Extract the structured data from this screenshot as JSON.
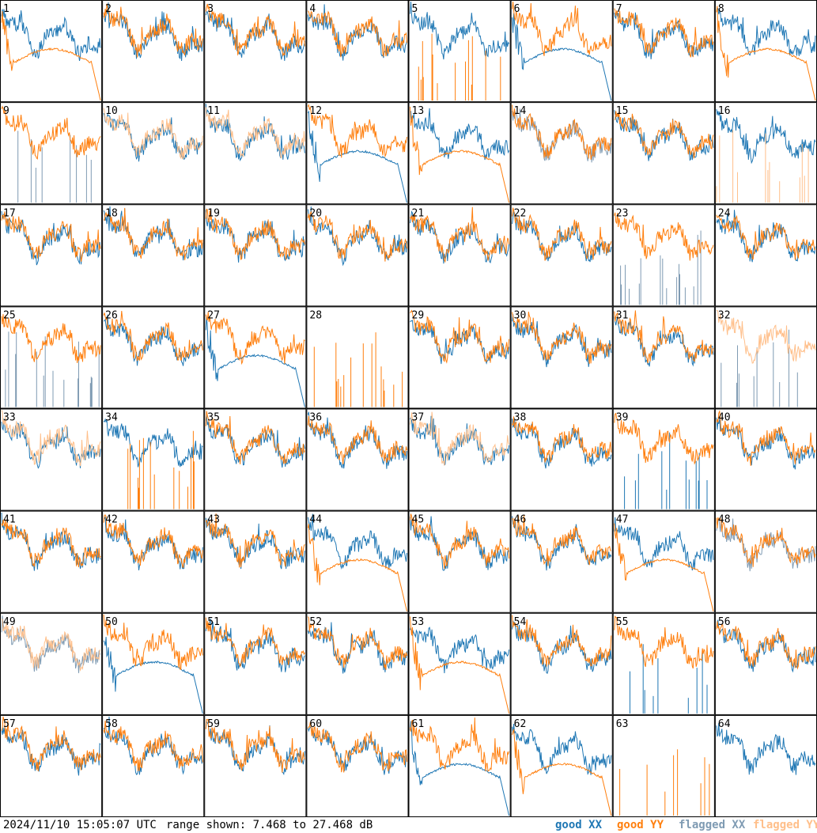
{
  "footer": {
    "timestamp": "2024/11/10 15:05:07 UTC",
    "range_text": "range shown: 7.468 to 27.468 dB"
  },
  "legend": [
    {
      "label": "good XX",
      "color": "#1f77b4"
    },
    {
      "label": "good YY",
      "color": "#ff7f0e"
    },
    {
      "label": "flagged XX",
      "color": "#7f9bb3"
    },
    {
      "label": "flagged YY",
      "color": "#ffbf8a"
    }
  ],
  "chart_data": {
    "type": "line",
    "layout": "8x8 small-multiples",
    "title": "",
    "xlabel": "",
    "ylabel": "",
    "ylim": [
      7.468,
      27.468
    ],
    "units": "dB",
    "grid": false,
    "legend_position": "bottom-right",
    "panels": [
      {
        "id": 1,
        "xx": "good",
        "yy": "good",
        "xx_shape": "normal",
        "yy_shape": "dip"
      },
      {
        "id": 2,
        "xx": "good",
        "yy": "good",
        "xx_shape": "normal",
        "yy_shape": "normal"
      },
      {
        "id": 3,
        "xx": "good",
        "yy": "good",
        "xx_shape": "normal",
        "yy_shape": "normal"
      },
      {
        "id": 4,
        "xx": "good",
        "yy": "good",
        "xx_shape": "normal",
        "yy_shape": "normal"
      },
      {
        "id": 5,
        "xx": "good",
        "yy": "good",
        "xx_shape": "normal",
        "yy_shape": "spikes"
      },
      {
        "id": 6,
        "xx": "good",
        "yy": "good",
        "xx_shape": "dip",
        "yy_shape": "normal"
      },
      {
        "id": 7,
        "xx": "good",
        "yy": "good",
        "xx_shape": "normal",
        "yy_shape": "normal"
      },
      {
        "id": 8,
        "xx": "good",
        "yy": "good",
        "xx_shape": "normal",
        "yy_shape": "dip"
      },
      {
        "id": 9,
        "xx": "flagged",
        "yy": "good",
        "xx_shape": "spikes",
        "yy_shape": "normal"
      },
      {
        "id": 10,
        "xx": "good",
        "yy": "flagged",
        "xx_shape": "normal",
        "yy_shape": "normal"
      },
      {
        "id": 11,
        "xx": "good",
        "yy": "flagged",
        "xx_shape": "normal",
        "yy_shape": "normal"
      },
      {
        "id": 12,
        "xx": "good",
        "yy": "good",
        "xx_shape": "dip",
        "yy_shape": "normal"
      },
      {
        "id": 13,
        "xx": "good",
        "yy": "good",
        "xx_shape": "normal",
        "yy_shape": "dip"
      },
      {
        "id": 14,
        "xx": "flagged",
        "yy": "good",
        "xx_shape": "normal",
        "yy_shape": "normal"
      },
      {
        "id": 15,
        "xx": "good",
        "yy": "good",
        "xx_shape": "normal",
        "yy_shape": "normal"
      },
      {
        "id": 16,
        "xx": "good",
        "yy": "flagged",
        "xx_shape": "normal",
        "yy_shape": "spikes"
      },
      {
        "id": 17,
        "xx": "good",
        "yy": "good",
        "xx_shape": "normal",
        "yy_shape": "normal"
      },
      {
        "id": 18,
        "xx": "good",
        "yy": "good",
        "xx_shape": "normal",
        "yy_shape": "normal"
      },
      {
        "id": 19,
        "xx": "good",
        "yy": "good",
        "xx_shape": "normal",
        "yy_shape": "normal"
      },
      {
        "id": 20,
        "xx": "good",
        "yy": "good",
        "xx_shape": "normal",
        "yy_shape": "normal"
      },
      {
        "id": 21,
        "xx": "good",
        "yy": "good",
        "xx_shape": "normal",
        "yy_shape": "normal"
      },
      {
        "id": 22,
        "xx": "good",
        "yy": "good",
        "xx_shape": "normal",
        "yy_shape": "normal"
      },
      {
        "id": 23,
        "xx": "flagged",
        "yy": "good",
        "xx_shape": "spikes",
        "yy_shape": "normal"
      },
      {
        "id": 24,
        "xx": "good",
        "yy": "good",
        "xx_shape": "normal",
        "yy_shape": "normal"
      },
      {
        "id": 25,
        "xx": "flagged",
        "yy": "good",
        "xx_shape": "spikes",
        "yy_shape": "normal"
      },
      {
        "id": 26,
        "xx": "good",
        "yy": "good",
        "xx_shape": "normal",
        "yy_shape": "normal"
      },
      {
        "id": 27,
        "xx": "good",
        "yy": "good",
        "xx_shape": "dip",
        "yy_shape": "normal"
      },
      {
        "id": 28,
        "xx": "good",
        "yy": "good",
        "xx_shape": "none",
        "yy_shape": "spikes"
      },
      {
        "id": 29,
        "xx": "good",
        "yy": "good",
        "xx_shape": "normal",
        "yy_shape": "normal"
      },
      {
        "id": 30,
        "xx": "good",
        "yy": "good",
        "xx_shape": "normal",
        "yy_shape": "normal"
      },
      {
        "id": 31,
        "xx": "good",
        "yy": "good",
        "xx_shape": "normal",
        "yy_shape": "normal"
      },
      {
        "id": 32,
        "xx": "flagged",
        "yy": "flagged",
        "xx_shape": "spikes",
        "yy_shape": "normal"
      },
      {
        "id": 33,
        "xx": "good",
        "yy": "flagged",
        "xx_shape": "normal",
        "yy_shape": "normal"
      },
      {
        "id": 34,
        "xx": "good",
        "yy": "good",
        "xx_shape": "normal",
        "yy_shape": "spikes"
      },
      {
        "id": 35,
        "xx": "good",
        "yy": "good",
        "xx_shape": "normal",
        "yy_shape": "normal"
      },
      {
        "id": 36,
        "xx": "good",
        "yy": "good",
        "xx_shape": "normal",
        "yy_shape": "normal"
      },
      {
        "id": 37,
        "xx": "good",
        "yy": "flagged",
        "xx_shape": "normal",
        "yy_shape": "normal"
      },
      {
        "id": 38,
        "xx": "good",
        "yy": "good",
        "xx_shape": "normal",
        "yy_shape": "normal"
      },
      {
        "id": 39,
        "xx": "good",
        "yy": "good",
        "xx_shape": "spikes",
        "yy_shape": "normal"
      },
      {
        "id": 40,
        "xx": "good",
        "yy": "good",
        "xx_shape": "normal",
        "yy_shape": "normal"
      },
      {
        "id": 41,
        "xx": "good",
        "yy": "good",
        "xx_shape": "normal",
        "yy_shape": "normal"
      },
      {
        "id": 42,
        "xx": "good",
        "yy": "good",
        "xx_shape": "normal",
        "yy_shape": "normal"
      },
      {
        "id": 43,
        "xx": "good",
        "yy": "good",
        "xx_shape": "normal",
        "yy_shape": "normal"
      },
      {
        "id": 44,
        "xx": "good",
        "yy": "good",
        "xx_shape": "normal",
        "yy_shape": "dip"
      },
      {
        "id": 45,
        "xx": "good",
        "yy": "good",
        "xx_shape": "normal",
        "yy_shape": "normal"
      },
      {
        "id": 46,
        "xx": "good",
        "yy": "good",
        "xx_shape": "normal",
        "yy_shape": "normal"
      },
      {
        "id": 47,
        "xx": "good",
        "yy": "good",
        "xx_shape": "normal",
        "yy_shape": "dip"
      },
      {
        "id": 48,
        "xx": "flagged",
        "yy": "good",
        "xx_shape": "normal",
        "yy_shape": "normal"
      },
      {
        "id": 49,
        "xx": "flagged",
        "yy": "flagged",
        "xx_shape": "normal",
        "yy_shape": "normal"
      },
      {
        "id": 50,
        "xx": "good",
        "yy": "good",
        "xx_shape": "dip",
        "yy_shape": "normal"
      },
      {
        "id": 51,
        "xx": "good",
        "yy": "good",
        "xx_shape": "normal",
        "yy_shape": "normal"
      },
      {
        "id": 52,
        "xx": "good",
        "yy": "good",
        "xx_shape": "normal",
        "yy_shape": "normal"
      },
      {
        "id": 53,
        "xx": "good",
        "yy": "good",
        "xx_shape": "normal",
        "yy_shape": "dip"
      },
      {
        "id": 54,
        "xx": "good",
        "yy": "good",
        "xx_shape": "normal",
        "yy_shape": "normal"
      },
      {
        "id": 55,
        "xx": "good",
        "yy": "good",
        "xx_shape": "spikes",
        "yy_shape": "normal"
      },
      {
        "id": 56,
        "xx": "good",
        "yy": "good",
        "xx_shape": "normal",
        "yy_shape": "normal"
      },
      {
        "id": 57,
        "xx": "good",
        "yy": "good",
        "xx_shape": "normal",
        "yy_shape": "normal"
      },
      {
        "id": 58,
        "xx": "good",
        "yy": "good",
        "xx_shape": "normal",
        "yy_shape": "normal"
      },
      {
        "id": 59,
        "xx": "good",
        "yy": "good",
        "xx_shape": "normal",
        "yy_shape": "normal"
      },
      {
        "id": 60,
        "xx": "good",
        "yy": "good",
        "xx_shape": "normal",
        "yy_shape": "normal"
      },
      {
        "id": 61,
        "xx": "good",
        "yy": "good",
        "xx_shape": "dip",
        "yy_shape": "normal"
      },
      {
        "id": 62,
        "xx": "good",
        "yy": "good",
        "xx_shape": "normal",
        "yy_shape": "dip"
      },
      {
        "id": 63,
        "xx": "good",
        "yy": "good",
        "xx_shape": "none",
        "yy_shape": "spikes"
      },
      {
        "id": 64,
        "xx": "good",
        "yy": "good",
        "xx_shape": "normal",
        "yy_shape": "none"
      }
    ]
  }
}
